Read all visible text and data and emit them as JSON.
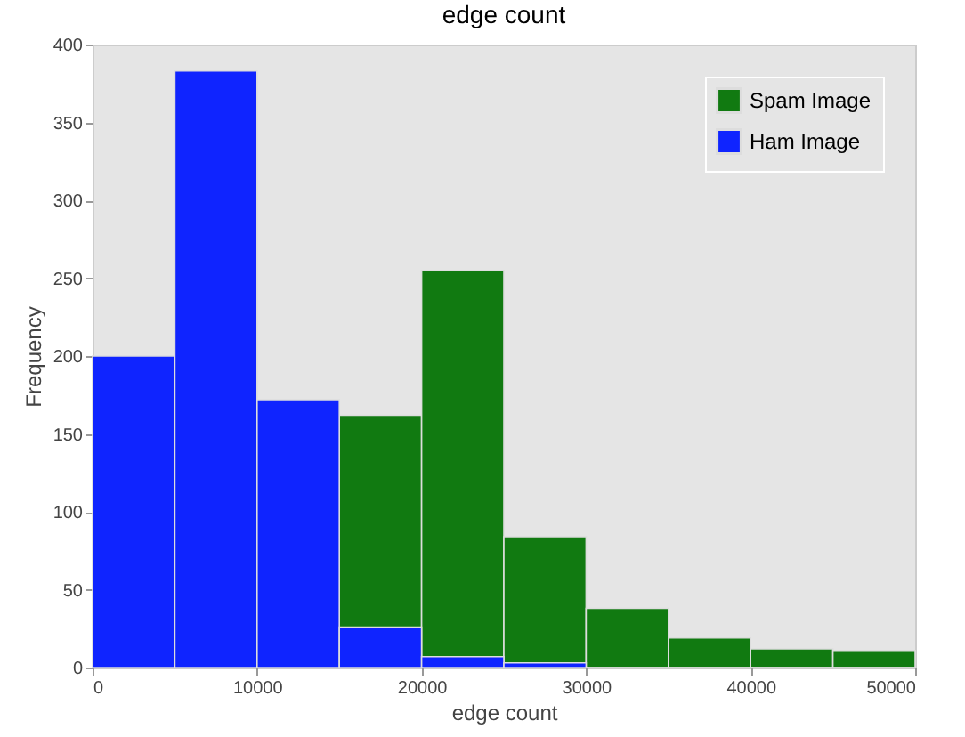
{
  "chart_data": {
    "type": "histogram",
    "title": "edge count",
    "xlabel": "edge count",
    "ylabel": "Frequency",
    "bins": [
      0,
      5000,
      10000,
      15000,
      20000,
      25000,
      30000,
      35000,
      40000,
      45000,
      50000
    ],
    "series": [
      {
        "name": "Spam Image",
        "color": "#117a11",
        "values": [
          null,
          null,
          null,
          162,
          255,
          84,
          38,
          19,
          12,
          11
        ]
      },
      {
        "name": "Ham Image",
        "color": "#0f24ff",
        "values": [
          200,
          383,
          172,
          26,
          7,
          3,
          0,
          0,
          0,
          0
        ]
      }
    ],
    "xlim": [
      0,
      50000
    ],
    "xticks": [
      0,
      10000,
      20000,
      30000,
      40000,
      50000
    ],
    "ylim": [
      0,
      400
    ],
    "yticks": [
      0,
      50,
      100,
      150,
      200,
      250,
      300,
      350,
      400
    ],
    "grid": false,
    "legend": "top right"
  }
}
